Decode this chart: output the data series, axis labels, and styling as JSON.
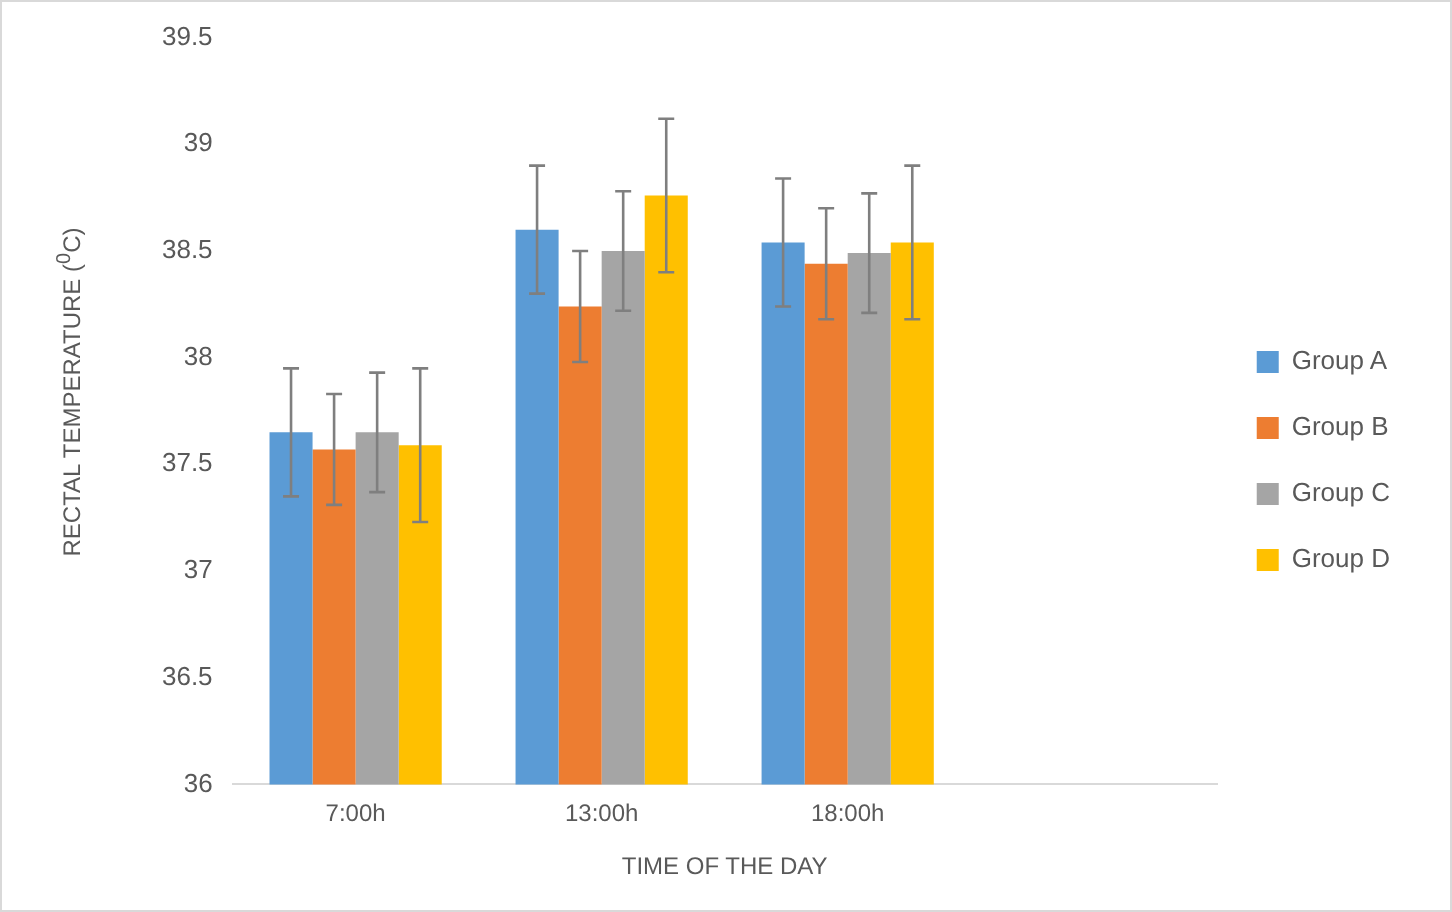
{
  "chart_data": {
    "type": "bar",
    "xlabel": "TIME OF THE DAY",
    "ylabel": "RECTAL TEMPERATURE ($^{0}$C)",
    "categories": [
      "7:00h",
      "13:00h",
      "18:00h",
      null
    ],
    "series": [
      {
        "name": "Group A",
        "color": "#5b9bd5",
        "values": [
          37.65,
          38.6,
          38.54,
          null
        ],
        "errors": [
          0.3,
          0.3,
          0.3,
          null
        ]
      },
      {
        "name": "Group B",
        "color": "#ed7d31",
        "values": [
          37.57,
          38.24,
          38.44,
          null
        ],
        "errors": [
          0.26,
          0.26,
          0.26,
          null
        ]
      },
      {
        "name": "Group C",
        "color": "#a5a5a5",
        "values": [
          37.65,
          38.5,
          38.49,
          null
        ],
        "errors": [
          0.28,
          0.28,
          0.28,
          null
        ]
      },
      {
        "name": "Group D",
        "color": "#ffc000",
        "values": [
          37.59,
          38.76,
          38.54,
          null
        ],
        "errors": [
          0.36,
          0.36,
          0.36,
          null
        ]
      }
    ],
    "ylim": [
      36,
      39.5
    ],
    "yticks": [
      36,
      36.5,
      37,
      37.5,
      38,
      38.5,
      39,
      39.5
    ],
    "grid": false,
    "legend": "right"
  }
}
